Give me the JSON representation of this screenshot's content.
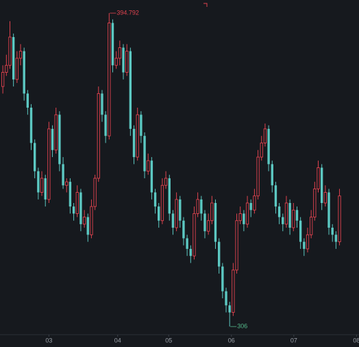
{
  "chart_data": {
    "type": "candlestick",
    "up_color": "#e0434f",
    "down_color": "#5cc8c2",
    "ylim": [
      303.7,
      398.5
    ],
    "xlim": [
      -0.8,
      100.5
    ],
    "xticks": [
      {
        "value": 13,
        "label": "03"
      },
      {
        "value": 32.4,
        "label": "04"
      },
      {
        "value": 46.8,
        "label": "05"
      },
      {
        "value": 64.5,
        "label": "06"
      },
      {
        "value": 82.1,
        "label": "07"
      },
      {
        "value": 99.8,
        "label": "08"
      }
    ],
    "annotations": [
      394.792,
      306
    ],
    "open": [
      374,
      378,
      380,
      388,
      376,
      382,
      384,
      372,
      368,
      358,
      350,
      344,
      348,
      342,
      362,
      356,
      366,
      352,
      346,
      347,
      340,
      338,
      344,
      335,
      337,
      332,
      340,
      348,
      372,
      366,
      360,
      392,
      380,
      382,
      385,
      378,
      384,
      362,
      354,
      366,
      360,
      350,
      353,
      344,
      340,
      336,
      346,
      348,
      338,
      334,
      342,
      336,
      331,
      328,
      326,
      338,
      342,
      338,
      333,
      336,
      341,
      330,
      323,
      316,
      312,
      310,
      322,
      336,
      338,
      335,
      341,
      339,
      343,
      354,
      358,
      362,
      352,
      346,
      340,
      337,
      335,
      341,
      334,
      339,
      336,
      330,
      328,
      332,
      337,
      345,
      351,
      341,
      344,
      334,
      332,
      330
    ],
    "high": [
      380,
      383,
      392.5,
      389,
      384,
      386,
      385,
      373,
      369,
      359,
      351,
      350,
      349,
      364,
      363,
      368,
      367,
      354,
      348,
      348,
      341,
      346,
      345,
      339,
      338,
      342,
      349,
      374,
      373,
      367,
      394.792,
      393,
      384,
      387,
      386,
      386,
      385,
      363,
      368,
      367,
      361,
      355,
      354,
      345,
      341,
      348,
      350,
      349,
      339,
      344,
      343,
      337,
      332,
      329,
      340,
      344,
      343,
      339,
      338,
      343,
      342,
      331,
      324,
      317,
      313,
      324,
      338,
      340,
      339,
      343,
      342,
      345,
      356,
      360,
      363.5,
      363,
      353,
      347,
      341,
      338,
      343,
      342,
      341,
      340,
      337,
      331,
      334,
      339,
      347,
      353,
      352,
      346,
      345,
      335,
      333,
      345
    ],
    "low": [
      372,
      377,
      379,
      374,
      375,
      380,
      370,
      366,
      356,
      348,
      342,
      343,
      340,
      341,
      354,
      355,
      350,
      345,
      344,
      338,
      336,
      337,
      333,
      334,
      330,
      331,
      339,
      347,
      364,
      358,
      359,
      378,
      379,
      380,
      376,
      377,
      360,
      352,
      353,
      358,
      348,
      349,
      342,
      338,
      334,
      335,
      345,
      336,
      332,
      333,
      334,
      329,
      326,
      324,
      325,
      337,
      336,
      331,
      332,
      335,
      328,
      321,
      314,
      310,
      306,
      309,
      321,
      335,
      333,
      334,
      337,
      338,
      342,
      353,
      357,
      350,
      344,
      338,
      335,
      333,
      334,
      332,
      333,
      334,
      328,
      326,
      327,
      331,
      336,
      344,
      339,
      340,
      332,
      330,
      328,
      329
    ],
    "close": [
      378,
      380,
      388,
      376,
      382,
      384,
      372,
      368,
      358,
      350,
      344,
      348,
      342,
      362,
      356,
      366,
      352,
      346,
      347,
      340,
      338,
      344,
      335,
      337,
      332,
      340,
      348,
      372,
      366,
      360,
      392,
      380,
      382,
      385,
      378,
      384,
      362,
      354,
      366,
      360,
      350,
      353,
      344,
      340,
      336,
      346,
      348,
      338,
      334,
      342,
      336,
      331,
      328,
      326,
      338,
      342,
      338,
      333,
      336,
      341,
      330,
      323,
      316,
      312,
      310,
      322,
      336,
      338,
      335,
      341,
      339,
      343,
      354,
      358,
      362,
      352,
      346,
      340,
      337,
      335,
      341,
      334,
      339,
      336,
      330,
      328,
      332,
      337,
      345,
      351,
      341,
      344,
      334,
      332,
      330,
      343
    ]
  }
}
